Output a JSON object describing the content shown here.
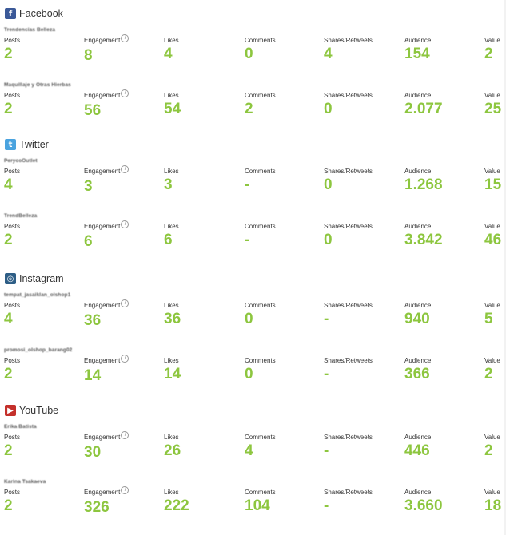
{
  "labels": {
    "posts": "Posts",
    "engagement": "Engagement",
    "likes": "Likes",
    "comments": "Comments",
    "shares": "Shares/Retweets",
    "audience": "Audience",
    "value": "Value",
    "info_glyph": "i"
  },
  "networks": [
    {
      "name": "Facebook",
      "icon": "facebook-icon",
      "icon_glyph": "f",
      "color": "#3b5998",
      "accounts": [
        {
          "name": "Trendencias Belleza",
          "posts": "2",
          "engagement": "8",
          "likes": "4",
          "comments": "0",
          "shares": "4",
          "audience": "154",
          "value": "2"
        },
        {
          "name": "Maquillaje y Otras Hierbas",
          "posts": "2",
          "engagement": "56",
          "likes": "54",
          "comments": "2",
          "shares": "0",
          "audience": "2.077",
          "value": "25"
        }
      ]
    },
    {
      "name": "Twitter",
      "icon": "twitter-icon",
      "icon_glyph": "t",
      "color": "#4aa3df",
      "accounts": [
        {
          "name": "PerycoOutlet",
          "posts": "4",
          "engagement": "3",
          "likes": "3",
          "comments": "-",
          "shares": "0",
          "audience": "1.268",
          "value": "15"
        },
        {
          "name": "TrendBelleza",
          "posts": "2",
          "engagement": "6",
          "likes": "6",
          "comments": "-",
          "shares": "0",
          "audience": "3.842",
          "value": "46"
        }
      ]
    },
    {
      "name": "Instagram",
      "icon": "instagram-icon",
      "icon_glyph": "◎",
      "color": "#2e5e86",
      "accounts": [
        {
          "name": "tempat_jasaiklan_olshop1",
          "posts": "4",
          "engagement": "36",
          "likes": "36",
          "comments": "0",
          "shares": "-",
          "audience": "940",
          "value": "5"
        },
        {
          "name": "promosi_olshop_barang02",
          "posts": "2",
          "engagement": "14",
          "likes": "14",
          "comments": "0",
          "shares": "-",
          "audience": "366",
          "value": "2"
        }
      ]
    },
    {
      "name": "YouTube",
      "icon": "youtube-icon",
      "icon_glyph": "▶",
      "color": "#c4302b",
      "accounts": [
        {
          "name": "Erika Batista",
          "posts": "2",
          "engagement": "30",
          "likes": "26",
          "comments": "4",
          "shares": "-",
          "audience": "446",
          "value": "2"
        },
        {
          "name": "Karina Tsakaeva",
          "posts": "2",
          "engagement": "326",
          "likes": "222",
          "comments": "104",
          "shares": "-",
          "audience": "3.660",
          "value": "18"
        }
      ]
    }
  ]
}
